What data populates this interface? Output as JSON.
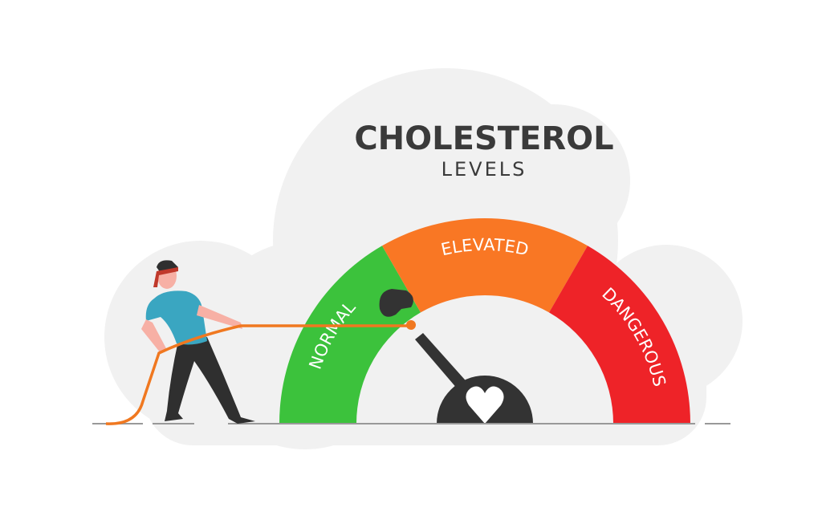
{
  "title": "CHOLESTEROL",
  "subtitle": "LEVELS",
  "gauge": {
    "segments": [
      {
        "label": "NORMAL",
        "color": "#3cc23c"
      },
      {
        "label": "ELEVATED",
        "color": "#f97724"
      },
      {
        "label": "DANGEROUS",
        "color": "#ee2328"
      }
    ],
    "needle_color": "#333333",
    "hub_icon": "heart-icon"
  },
  "colors": {
    "background_cloud": "#f1f1f1",
    "rope": "#f07820",
    "shirt": "#3aa6c1",
    "pants": "#2f2f2f",
    "headband": "#c0392b",
    "skin": "#f7b0a5"
  }
}
